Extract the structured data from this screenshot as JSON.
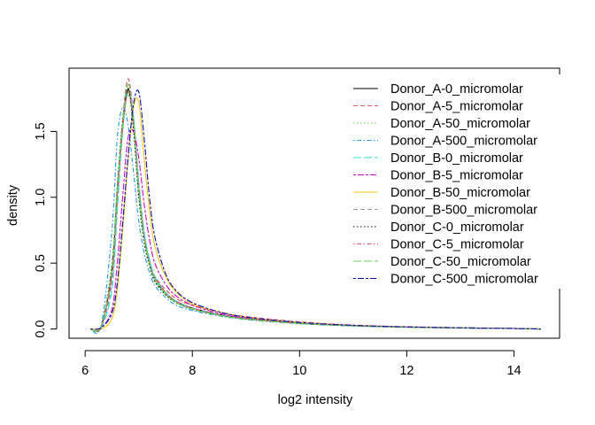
{
  "chart_data": {
    "type": "line",
    "title": "",
    "xlabel": "log2 intensity",
    "ylabel": "density",
    "xlim": [
      5.7,
      14.85
    ],
    "ylim": [
      -0.07,
      1.98
    ],
    "xticks": [
      6,
      8,
      10,
      12,
      14
    ],
    "yticks": [
      0.0,
      0.5,
      1.0,
      1.5
    ],
    "xtick_labels": [
      "6",
      "8",
      "10",
      "12",
      "14"
    ],
    "ytick_labels": [
      "0.0",
      "0.5",
      "1.0",
      "1.5"
    ],
    "grid": false,
    "legend_position": "top-right",
    "x": [
      6.1,
      6.3,
      6.5,
      6.6,
      6.7,
      6.8,
      6.9,
      7.0,
      7.1,
      7.2,
      7.3,
      7.5,
      7.7,
      8.0,
      8.5,
      9.0,
      10.0,
      11.0,
      12.0,
      13.0,
      14.0,
      14.5
    ],
    "series": [
      {
        "name": "Donor_A-0_micromolar",
        "color": "#000000",
        "dash": "solid",
        "values": [
          0,
          0.02,
          0.45,
          1.05,
          1.55,
          1.82,
          1.58,
          1.05,
          0.7,
          0.5,
          0.38,
          0.27,
          0.21,
          0.16,
          0.11,
          0.08,
          0.045,
          0.025,
          0.015,
          0.008,
          0.004,
          0
        ]
      },
      {
        "name": "Donor_A-5_micromolar",
        "color": "#df536b",
        "dash": "dashed",
        "values": [
          0,
          0.02,
          0.4,
          1.0,
          1.58,
          1.9,
          1.62,
          1.1,
          0.72,
          0.52,
          0.4,
          0.3,
          0.23,
          0.18,
          0.13,
          0.095,
          0.055,
          0.03,
          0.018,
          0.01,
          0.005,
          0
        ]
      },
      {
        "name": "Donor_A-50_micromolar",
        "color": "#61d04f",
        "dash": "dotted",
        "values": [
          0,
          0.02,
          0.5,
          1.1,
          1.6,
          1.84,
          1.55,
          1.02,
          0.68,
          0.49,
          0.37,
          0.26,
          0.2,
          0.15,
          0.105,
          0.075,
          0.042,
          0.024,
          0.014,
          0.008,
          0.004,
          0
        ]
      },
      {
        "name": "Donor_A-500_micromolar",
        "color": "#2297e6",
        "dash": "dotdash",
        "values": [
          0,
          0.03,
          0.75,
          1.45,
          1.68,
          1.55,
          1.2,
          0.82,
          0.58,
          0.43,
          0.33,
          0.24,
          0.18,
          0.14,
          0.1,
          0.072,
          0.04,
          0.022,
          0.013,
          0.007,
          0.003,
          0
        ]
      },
      {
        "name": "Donor_B-0_micromolar",
        "color": "#28e2e5",
        "dash": "longdash",
        "values": [
          0,
          0.01,
          0.3,
          0.9,
          1.5,
          1.8,
          1.62,
          1.12,
          0.74,
          0.53,
          0.4,
          0.28,
          0.21,
          0.16,
          0.11,
          0.08,
          0.045,
          0.025,
          0.015,
          0.008,
          0.004,
          0
        ]
      },
      {
        "name": "Donor_B-5_micromolar",
        "color": "#cd0bbc",
        "dash": "twodash",
        "values": [
          0,
          0.01,
          0.15,
          0.5,
          1.0,
          1.45,
          1.5,
          1.3,
          0.95,
          0.68,
          0.5,
          0.34,
          0.25,
          0.18,
          0.12,
          0.085,
          0.048,
          0.027,
          0.016,
          0.009,
          0.004,
          0
        ]
      },
      {
        "name": "Donor_B-50_micromolar",
        "color": "#f5c710",
        "dash": "solid",
        "values": [
          0,
          0.0,
          0.08,
          0.3,
          0.75,
          1.28,
          1.68,
          1.72,
          1.3,
          0.9,
          0.63,
          0.4,
          0.28,
          0.19,
          0.13,
          0.09,
          0.05,
          0.028,
          0.016,
          0.009,
          0.004,
          0
        ]
      },
      {
        "name": "Donor_B-500_micromolar",
        "color": "#9e9e9e",
        "dash": "dashed",
        "values": [
          0,
          0.01,
          0.35,
          0.95,
          1.52,
          1.78,
          1.55,
          1.06,
          0.7,
          0.5,
          0.38,
          0.27,
          0.2,
          0.15,
          0.105,
          0.075,
          0.042,
          0.024,
          0.014,
          0.008,
          0.004,
          0
        ]
      },
      {
        "name": "Donor_C-0_micromolar",
        "color": "#000000",
        "dash": "dotted",
        "values": [
          0,
          0.02,
          0.48,
          1.08,
          1.58,
          1.83,
          1.52,
          1.0,
          0.66,
          0.48,
          0.36,
          0.26,
          0.2,
          0.15,
          0.105,
          0.075,
          0.042,
          0.024,
          0.014,
          0.008,
          0.004,
          0
        ]
      },
      {
        "name": "Donor_C-5_micromolar",
        "color": "#df536b",
        "dash": "dotdash",
        "values": [
          0,
          0.02,
          0.42,
          1.02,
          1.52,
          1.8,
          1.58,
          1.08,
          0.71,
          0.51,
          0.39,
          0.28,
          0.21,
          0.16,
          0.11,
          0.08,
          0.045,
          0.025,
          0.015,
          0.008,
          0.004,
          0
        ]
      },
      {
        "name": "Donor_C-50_micromolar",
        "color": "#61d04f",
        "dash": "longdash",
        "values": [
          0,
          0.02,
          0.46,
          1.06,
          1.56,
          1.86,
          1.6,
          1.05,
          0.69,
          0.5,
          0.38,
          0.27,
          0.2,
          0.15,
          0.105,
          0.075,
          0.042,
          0.024,
          0.014,
          0.008,
          0.004,
          0
        ]
      },
      {
        "name": "Donor_C-500_micromolar",
        "color": "#0b0bb0",
        "dash": "twodash",
        "values": [
          0,
          0.01,
          0.12,
          0.35,
          0.8,
          1.3,
          1.7,
          1.8,
          1.45,
          1.0,
          0.7,
          0.42,
          0.29,
          0.2,
          0.13,
          0.09,
          0.05,
          0.028,
          0.016,
          0.009,
          0.004,
          0
        ]
      }
    ]
  }
}
